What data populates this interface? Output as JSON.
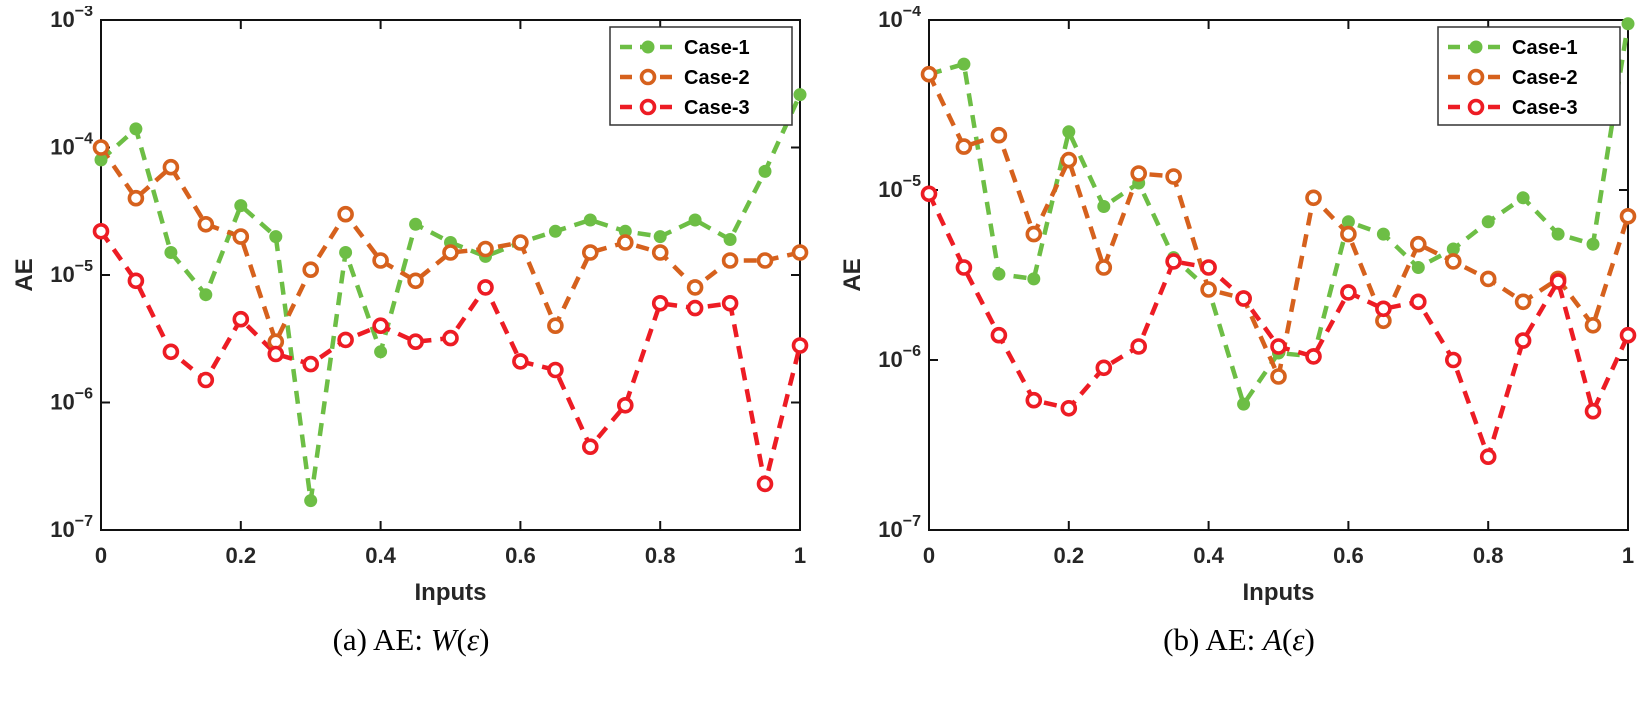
{
  "figure": {
    "panels": [
      {
        "caption_prefix": "(a) AE: ",
        "caption_symbol": "W",
        "caption_open": "(",
        "caption_arg": "ε",
        "caption_close": ")"
      },
      {
        "caption_prefix": "(b) AE: ",
        "caption_symbol": "A",
        "caption_open": "(",
        "caption_arg": "ε",
        "caption_close": ")"
      }
    ]
  },
  "chart_data": [
    {
      "type": "line",
      "title": "",
      "xlabel": "Inputs",
      "ylabel": "AE",
      "yscale": "log",
      "xlim": [
        0,
        1
      ],
      "ylim": [
        1e-07,
        0.001
      ],
      "xticks": [
        0,
        0.2,
        0.4,
        0.6,
        0.8,
        1
      ],
      "xtick_labels": [
        "0",
        "0.2",
        "0.4",
        "0.6",
        "0.8",
        "1"
      ],
      "ytick_exponents": [
        -7,
        -6,
        -5,
        -4,
        -3
      ],
      "grid": false,
      "legend_position": "top-right",
      "x": [
        0,
        0.05,
        0.1,
        0.15,
        0.2,
        0.25,
        0.3,
        0.35,
        0.4,
        0.45,
        0.5,
        0.55,
        0.6,
        0.65,
        0.7,
        0.75,
        0.8,
        0.85,
        0.9,
        0.95,
        1
      ],
      "series": [
        {
          "name": "Case-1",
          "color": "#6dbe45",
          "marker": "filled-circle",
          "values": [
            8e-05,
            0.00014,
            1.5e-05,
            7e-06,
            3.5e-05,
            2e-05,
            1.7e-07,
            1.5e-05,
            2.5e-06,
            2.5e-05,
            1.8e-05,
            1.4e-05,
            1.8e-05,
            2.2e-05,
            2.7e-05,
            2.2e-05,
            2e-05,
            2.7e-05,
            1.9e-05,
            6.5e-05,
            0.00026
          ]
        },
        {
          "name": "Case-2",
          "color": "#d6611d",
          "marker": "open-circle",
          "values": [
            0.0001,
            4e-05,
            7e-05,
            2.5e-05,
            2e-05,
            3e-06,
            1.1e-05,
            3e-05,
            1.3e-05,
            9e-06,
            1.5e-05,
            1.6e-05,
            1.8e-05,
            4e-06,
            1.5e-05,
            1.8e-05,
            1.5e-05,
            8e-06,
            1.3e-05,
            1.3e-05,
            1.5e-05
          ]
        },
        {
          "name": "Case-3",
          "color": "#ed1c24",
          "marker": "open-circle",
          "values": [
            2.2e-05,
            9e-06,
            2.5e-06,
            1.5e-06,
            4.5e-06,
            2.4e-06,
            2e-06,
            3.1e-06,
            4e-06,
            3e-06,
            3.2e-06,
            8e-06,
            2.1e-06,
            1.8e-06,
            4.5e-07,
            9.5e-07,
            6e-06,
            5.5e-06,
            6e-06,
            2.3e-07,
            2.8e-06
          ]
        }
      ]
    },
    {
      "type": "line",
      "title": "",
      "xlabel": "Inputs",
      "ylabel": "AE",
      "yscale": "log",
      "xlim": [
        0,
        1
      ],
      "ylim": [
        1e-07,
        0.0001
      ],
      "xticks": [
        0,
        0.2,
        0.4,
        0.6,
        0.8,
        1
      ],
      "xtick_labels": [
        "0",
        "0.2",
        "0.4",
        "0.6",
        "0.8",
        "1"
      ],
      "ytick_exponents": [
        -7,
        -6,
        -5,
        -4
      ],
      "grid": false,
      "legend_position": "top-right",
      "x": [
        0,
        0.05,
        0.1,
        0.15,
        0.2,
        0.25,
        0.3,
        0.35,
        0.4,
        0.45,
        0.5,
        0.55,
        0.6,
        0.65,
        0.7,
        0.75,
        0.8,
        0.85,
        0.9,
        0.95,
        1
      ],
      "series": [
        {
          "name": "Case-1",
          "color": "#6dbe45",
          "marker": "filled-circle",
          "values": [
            4.8e-05,
            5.5e-05,
            3.2e-06,
            3e-06,
            2.2e-05,
            8e-06,
            1.1e-05,
            4e-06,
            2.6e-06,
            5.5e-07,
            1.1e-06,
            1.05e-06,
            6.5e-06,
            5.5e-06,
            3.5e-06,
            4.5e-06,
            6.5e-06,
            9e-06,
            5.5e-06,
            4.8e-06,
            9.5e-05
          ]
        },
        {
          "name": "Case-2",
          "color": "#d6611d",
          "marker": "open-circle",
          "values": [
            4.8e-05,
            1.8e-05,
            2.1e-05,
            5.5e-06,
            1.5e-05,
            3.5e-06,
            1.25e-05,
            1.2e-05,
            2.6e-06,
            2.3e-06,
            8e-07,
            9e-06,
            5.5e-06,
            1.7e-06,
            4.8e-06,
            3.8e-06,
            3e-06,
            2.2e-06,
            3e-06,
            1.6e-06,
            7e-06
          ]
        },
        {
          "name": "Case-3",
          "color": "#ed1c24",
          "marker": "open-circle",
          "values": [
            9.5e-06,
            3.5e-06,
            1.4e-06,
            5.8e-07,
            5.2e-07,
            9e-07,
            1.2e-06,
            3.8e-06,
            3.5e-06,
            2.3e-06,
            1.2e-06,
            1.05e-06,
            2.5e-06,
            2e-06,
            2.2e-06,
            1e-06,
            2.7e-07,
            1.3e-06,
            2.9e-06,
            5e-07,
            1.4e-06
          ]
        }
      ]
    }
  ]
}
